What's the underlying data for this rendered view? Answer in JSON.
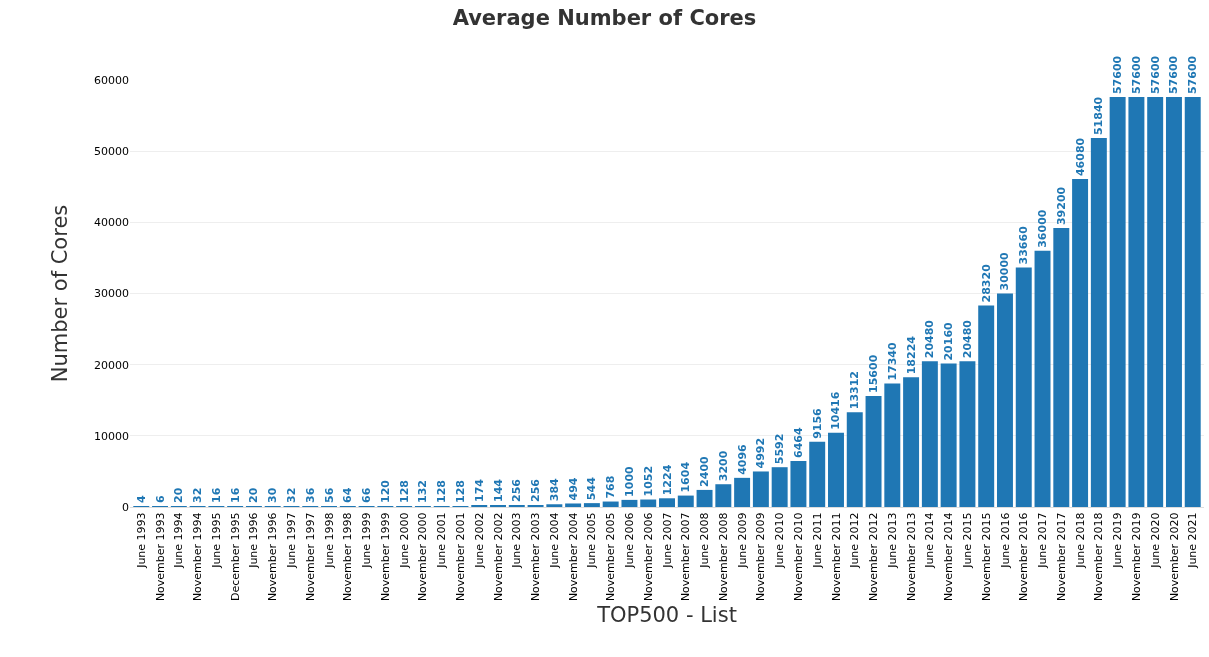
{
  "chart_data": {
    "type": "bar",
    "title": "Average Number of Cores",
    "xlabel": "TOP500 - List",
    "ylabel": "Number of Cores",
    "categories": [
      "June 1993",
      "November 1993",
      "June 1994",
      "November 1994",
      "June 1995",
      "December 1995",
      "June 1996",
      "November 1996",
      "June 1997",
      "November 1997",
      "June 1998",
      "November 1998",
      "June 1999",
      "November 1999",
      "June 2000",
      "November 2000",
      "June 2001",
      "November 2001",
      "June 2002",
      "November 2002",
      "June 2003",
      "November 2003",
      "June 2004",
      "November 2004",
      "June 2005",
      "November 2005",
      "June 2006",
      "November 2006",
      "June 2007",
      "November 2007",
      "June 2008",
      "November 2008",
      "June 2009",
      "November 2009",
      "June 2010",
      "November 2010",
      "June 2011",
      "November 2011",
      "June 2012",
      "November 2012",
      "June 2013",
      "November 2013",
      "June 2014",
      "November 2014",
      "June 2015",
      "November 2015",
      "June 2016",
      "November 2016",
      "June 2017",
      "November 2017",
      "June 2018",
      "November 2018",
      "June 2019",
      "November 2019",
      "June 2020",
      "November 2020",
      "June 2021"
    ],
    "values": [
      4,
      6,
      20,
      32,
      16,
      16,
      20,
      30,
      32,
      36,
      56,
      64,
      66,
      120,
      128,
      132,
      128,
      128,
      174,
      144,
      256,
      256,
      384,
      494,
      544,
      768,
      1000,
      1052,
      1224,
      1604,
      2400,
      3200,
      4096,
      4992,
      5592,
      6464,
      9156,
      10416,
      13312,
      15600,
      17340,
      18224,
      20480,
      20160,
      20480,
      28320,
      30000,
      33660,
      36000,
      39200,
      46080,
      51840,
      57600,
      57600,
      57600,
      57600,
      57600
    ],
    "color": "#1f77b4",
    "ylim": [
      0,
      60000
    ],
    "yticks": [
      0,
      10000,
      20000,
      30000,
      40000,
      50000,
      60000
    ],
    "grid": "y",
    "data_labels": true
  }
}
